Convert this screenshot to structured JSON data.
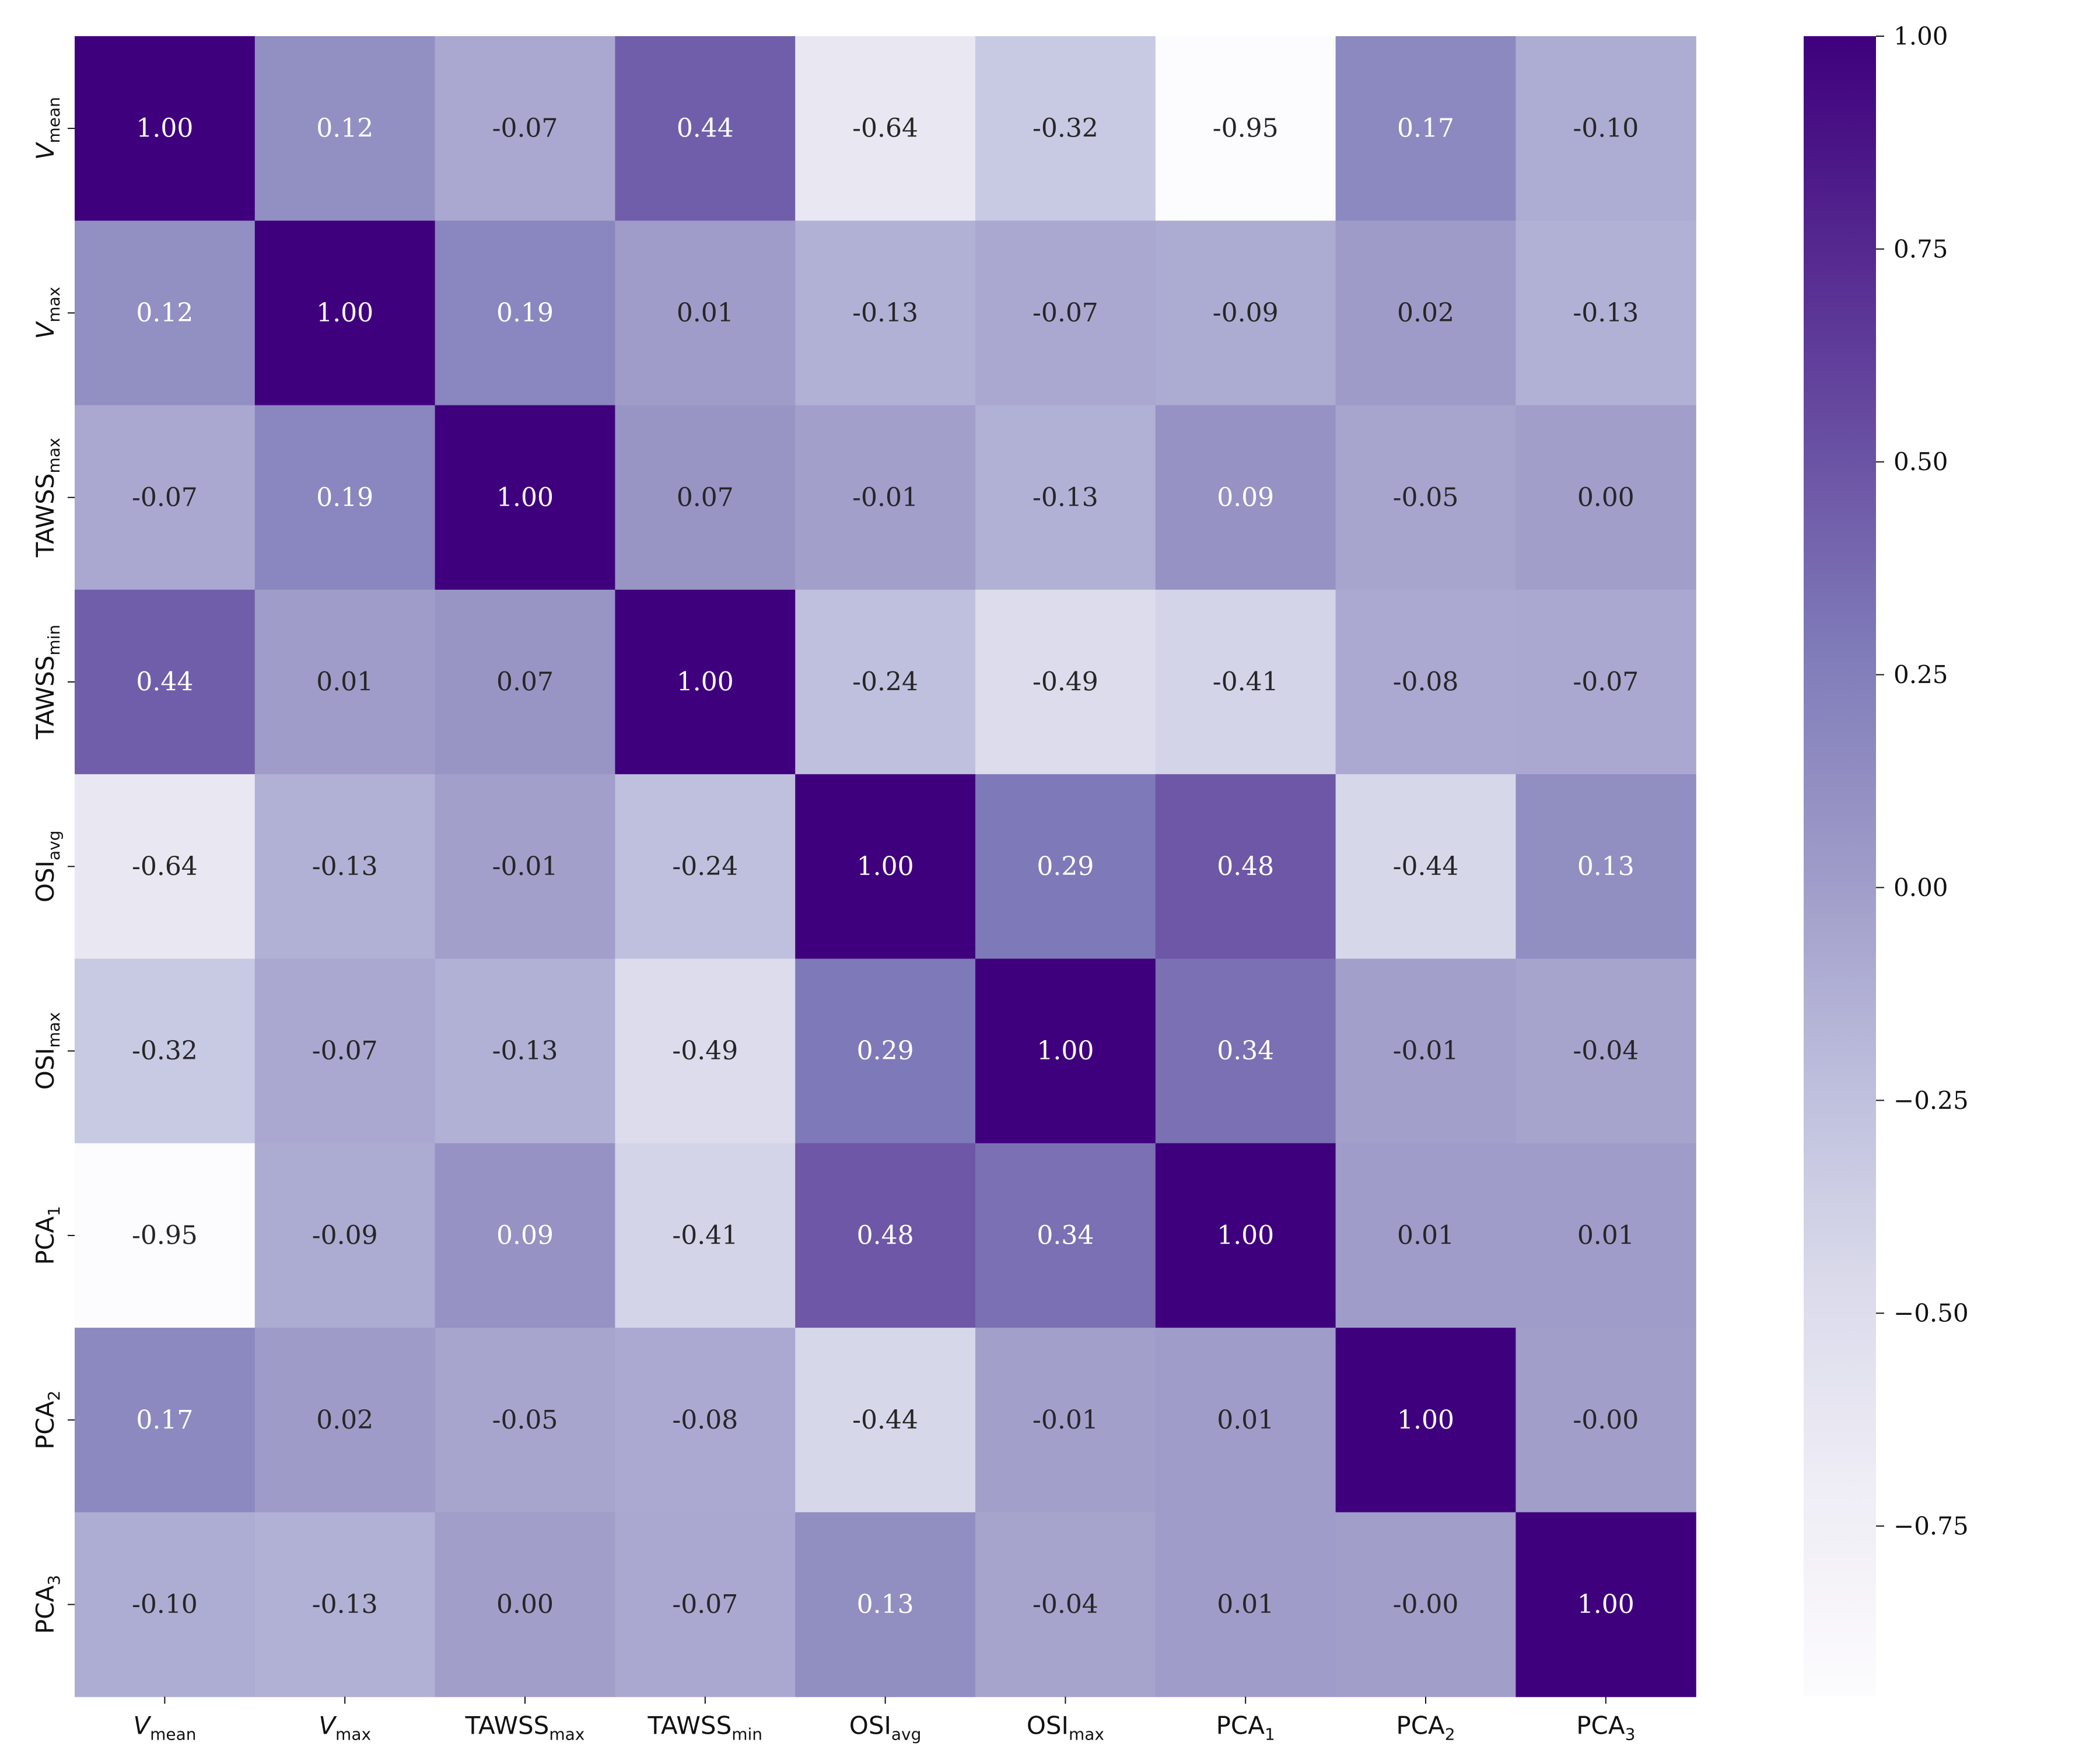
{
  "chart_data": {
    "type": "heatmap",
    "colormap": "Purples",
    "colors": {
      "low": "#fcfbfd",
      "high": "#3f007d"
    },
    "labels": [
      {
        "base": "V",
        "sub": "mean",
        "italic": true
      },
      {
        "base": "V",
        "sub": "max",
        "italic": true
      },
      {
        "base": "TAWSS",
        "sub": "max",
        "italic": false
      },
      {
        "base": "TAWSS",
        "sub": "min",
        "italic": false
      },
      {
        "base": "OSI",
        "sub": "avg",
        "italic": false
      },
      {
        "base": "OSI",
        "sub": "max",
        "italic": false
      },
      {
        "base": "PCA",
        "sub": "1",
        "italic": false
      },
      {
        "base": "PCA",
        "sub": "2",
        "italic": false
      },
      {
        "base": "PCA",
        "sub": "3",
        "italic": false
      }
    ],
    "values": [
      [
        1.0,
        0.12,
        -0.07,
        0.44,
        -0.64,
        -0.32,
        -0.95,
        0.17,
        -0.1
      ],
      [
        0.12,
        1.0,
        0.19,
        0.01,
        -0.13,
        -0.07,
        -0.09,
        0.02,
        -0.13
      ],
      [
        -0.07,
        0.19,
        1.0,
        0.07,
        -0.01,
        -0.13,
        0.09,
        -0.05,
        0.0
      ],
      [
        0.44,
        0.01,
        0.07,
        1.0,
        -0.24,
        -0.49,
        -0.41,
        -0.08,
        -0.07
      ],
      [
        -0.64,
        -0.13,
        -0.01,
        -0.24,
        1.0,
        0.29,
        0.48,
        -0.44,
        0.13
      ],
      [
        -0.32,
        -0.07,
        -0.13,
        -0.49,
        0.29,
        1.0,
        0.34,
        -0.01,
        -0.04
      ],
      [
        -0.95,
        -0.09,
        0.09,
        -0.41,
        0.48,
        0.34,
        1.0,
        0.01,
        0.01
      ],
      [
        0.17,
        0.02,
        -0.05,
        -0.08,
        -0.44,
        -0.01,
        0.01,
        1.0,
        -0.0
      ],
      [
        -0.1,
        -0.13,
        0.0,
        -0.07,
        0.13,
        -0.04,
        0.01,
        -0.0,
        1.0
      ]
    ],
    "display_values": [
      [
        "1.00",
        "0.12",
        "-0.07",
        "0.44",
        "-0.64",
        "-0.32",
        "-0.95",
        "0.17",
        "-0.10"
      ],
      [
        "0.12",
        "1.00",
        "0.19",
        "0.01",
        "-0.13",
        "-0.07",
        "-0.09",
        "0.02",
        "-0.13"
      ],
      [
        "-0.07",
        "0.19",
        "1.00",
        "0.07",
        "-0.01",
        "-0.13",
        "0.09",
        "-0.05",
        "0.00"
      ],
      [
        "0.44",
        "0.01",
        "0.07",
        "1.00",
        "-0.24",
        "-0.49",
        "-0.41",
        "-0.08",
        "-0.07"
      ],
      [
        "-0.64",
        "-0.13",
        "-0.01",
        "-0.24",
        "1.00",
        "0.29",
        "0.48",
        "-0.44",
        "0.13"
      ],
      [
        "-0.32",
        "-0.07",
        "-0.13",
        "-0.49",
        "0.29",
        "1.00",
        "0.34",
        "-0.01",
        "-0.04"
      ],
      [
        "-0.95",
        "-0.09",
        "0.09",
        "-0.41",
        "0.48",
        "0.34",
        "1.00",
        "0.01",
        "0.01"
      ],
      [
        "0.17",
        "0.02",
        "-0.05",
        "-0.08",
        "-0.44",
        "-0.01",
        "0.01",
        "1.00",
        "-0.00"
      ],
      [
        "-0.10",
        "-0.13",
        "0.00",
        "-0.07",
        "0.13",
        "-0.04",
        "0.01",
        "-0.00",
        "1.00"
      ]
    ],
    "vmin": -0.95,
    "vmax": 1.0,
    "colorbar": {
      "ticks": [
        1.0,
        0.75,
        0.5,
        0.25,
        0.0,
        -0.25,
        -0.5,
        -0.75
      ],
      "tick_labels": [
        "1.00",
        "0.75",
        "0.50",
        "0.25",
        "0.00",
        "−0.25",
        "−0.50",
        "−0.75"
      ]
    },
    "title": "",
    "xlabel": "",
    "ylabel": ""
  }
}
